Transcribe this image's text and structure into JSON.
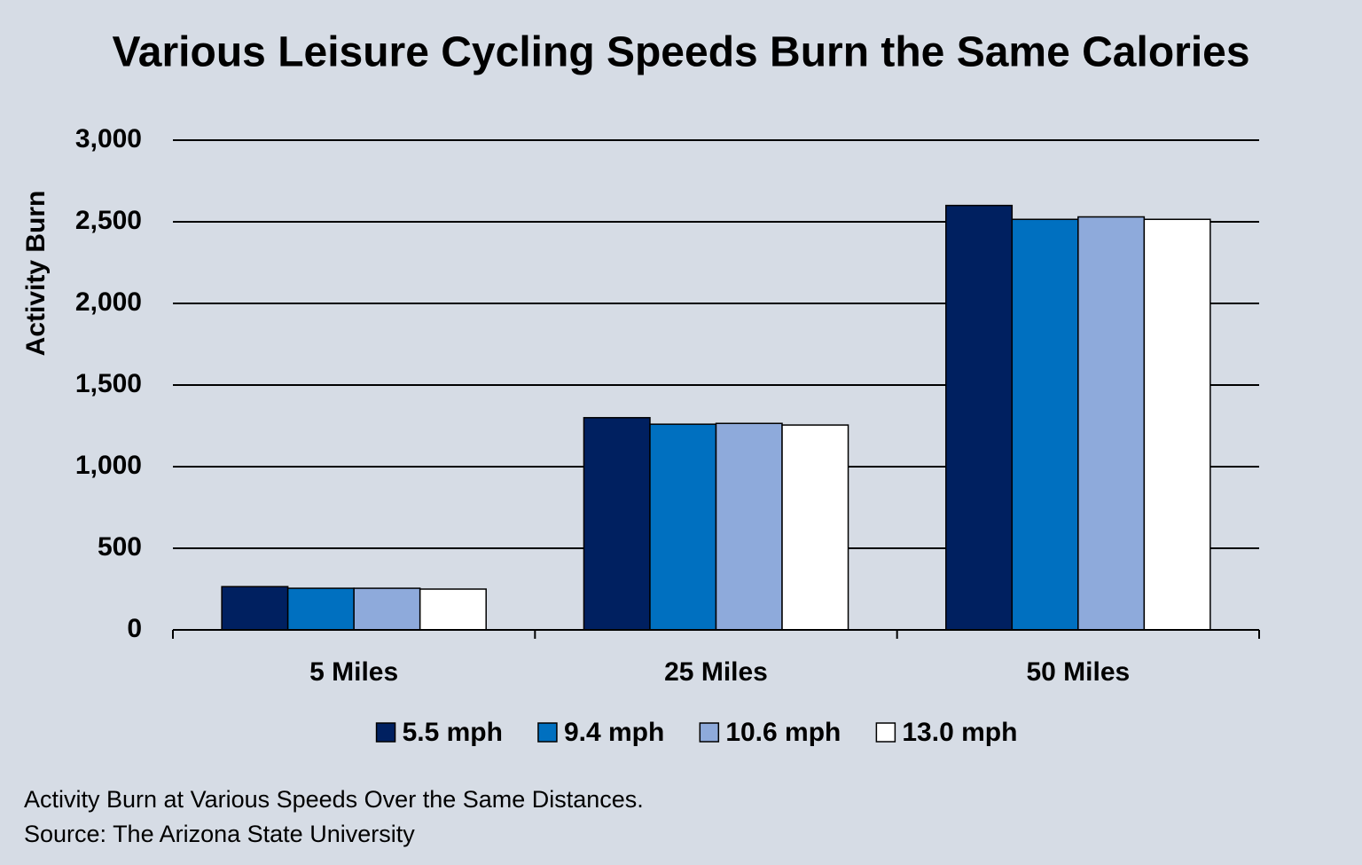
{
  "chart_data": {
    "type": "bar",
    "title": "Various Leisure Cycling Speeds Burn the Same Calories",
    "y_label": "Activity Burn",
    "categories": [
      "5 Miles",
      "25 Miles",
      "50 Miles"
    ],
    "series": [
      {
        "name": "5.5 mph",
        "color": "#002060",
        "values": [
          265,
          1300,
          2600
        ]
      },
      {
        "name": "9.4 mph",
        "color": "#0070c0",
        "values": [
          255,
          1260,
          2515
        ]
      },
      {
        "name": "10.6 mph",
        "color": "#8eaadb",
        "values": [
          255,
          1265,
          2530
        ]
      },
      {
        "name": "13.0 mph",
        "color": "#ffffff",
        "values": [
          250,
          1255,
          2515
        ]
      }
    ],
    "ylim": [
      0,
      3000
    ],
    "yticks": [
      0,
      500,
      {
        "value": 1000,
        "label": "1,000"
      },
      {
        "value": 1500,
        "label": "1,500"
      },
      {
        "value": 2000,
        "label": "2,000"
      },
      {
        "value": 2500,
        "label": "2,500"
      },
      {
        "value": 3000,
        "label": "3,000"
      }
    ],
    "grid": true,
    "legend": "bottom",
    "footnotes": [
      "Activity Burn at Various Speeds Over the Same Distances.",
      "Source: The Arizona State University"
    ]
  }
}
